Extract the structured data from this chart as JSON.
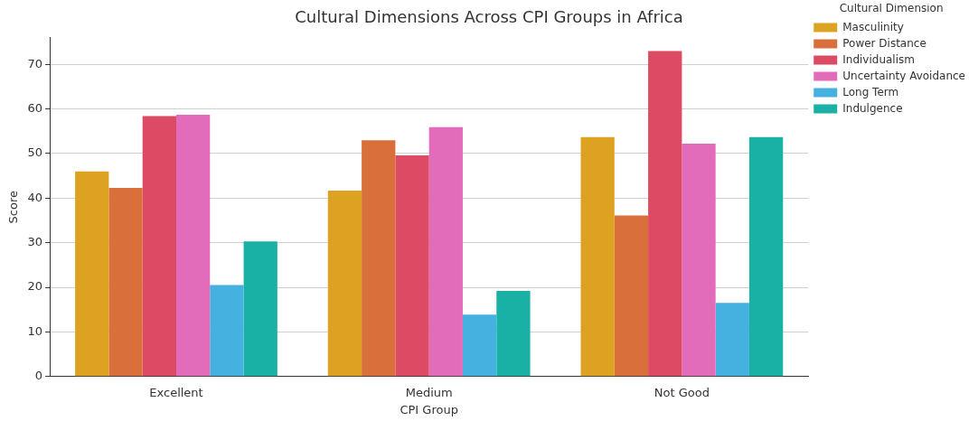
{
  "chart_data": {
    "type": "bar",
    "title": "Cultural Dimensions Across CPI Groups in Africa",
    "xlabel": "CPI Group",
    "ylabel": "Score",
    "legend_title": "Cultural Dimension",
    "categories": [
      "Excellent",
      "Medium",
      "Not Good"
    ],
    "series": [
      {
        "name": "Masculinity",
        "color": "#dea222",
        "values": [
          46.0,
          41.7,
          53.7
        ]
      },
      {
        "name": "Power Distance",
        "color": "#d9703b",
        "values": [
          42.3,
          53.0,
          36.1
        ]
      },
      {
        "name": "Individualism",
        "color": "#dc4a64",
        "values": [
          58.4,
          49.6,
          73.0
        ]
      },
      {
        "name": "Uncertainty Avoidance",
        "color": "#e36cba",
        "values": [
          58.7,
          55.9,
          52.2
        ]
      },
      {
        "name": "Long Term",
        "color": "#45b1e1",
        "values": [
          20.5,
          13.9,
          16.5
        ]
      },
      {
        "name": "Indulgence",
        "color": "#19b1a5",
        "values": [
          30.3,
          19.2,
          53.7
        ]
      }
    ],
    "ylim": [
      0,
      76
    ],
    "yticks": [
      0,
      10,
      20,
      30,
      40,
      50,
      60,
      70
    ],
    "grid": "y",
    "legend": "top right"
  }
}
